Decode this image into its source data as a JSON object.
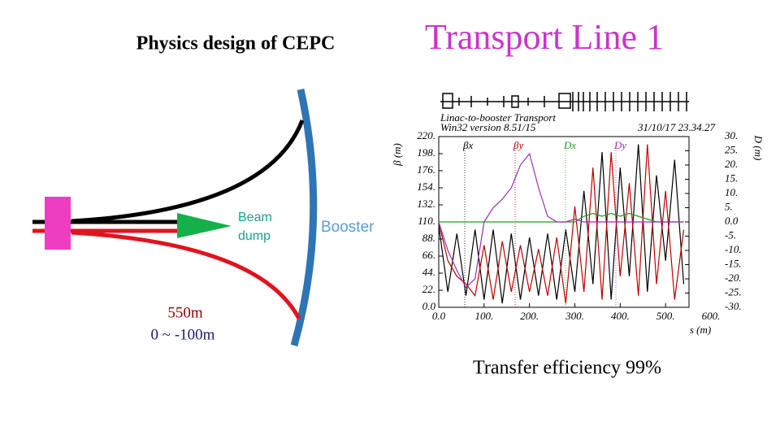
{
  "slide": {
    "title_left": "Physics design of CEPC",
    "title_right": "Transport Line 1",
    "caption": "Transfer efficiency 99%"
  },
  "diagram": {
    "beam_dump": [
      "Beam",
      "dump"
    ],
    "booster": "Booster",
    "length": "550m",
    "height": "0 ~ -100m"
  },
  "chart_data": {
    "type": "line",
    "title": "Linac-to-booster Transport",
    "subtitle": "Win32 version 8.51/15",
    "annotation": "31/10/17  23.34.27",
    "xlabel": "s (m)",
    "ylabel": "β (m)",
    "y2label": "D (m)",
    "x": [
      0,
      20,
      40,
      60,
      80,
      100,
      120,
      140,
      160,
      180,
      200,
      220,
      240,
      260,
      280,
      300,
      320,
      340,
      360,
      380,
      400,
      420,
      440,
      460,
      480,
      500,
      520,
      540
    ],
    "series": [
      {
        "name": "βx",
        "color": "#000000",
        "values": [
          105,
          20,
          95,
          15,
          100,
          10,
          100,
          5,
          95,
          10,
          90,
          15,
          95,
          10,
          100,
          20,
          150,
          30,
          200,
          10,
          180,
          40,
          210,
          20,
          170,
          60,
          190,
          30
        ]
      },
      {
        "name": "βy",
        "color": "#c00000",
        "values": [
          110,
          60,
          40,
          30,
          15,
          80,
          10,
          85,
          20,
          80,
          20,
          75,
          15,
          90,
          5,
          130,
          20,
          180,
          10,
          200,
          40,
          160,
          15,
          210,
          30,
          150,
          10,
          100
        ]
      },
      {
        "name": "Dx",
        "color": "#1fa01f",
        "axis": "y2",
        "values": [
          0,
          0,
          0,
          0,
          0,
          0,
          0,
          0,
          0,
          0,
          0,
          0,
          0,
          0,
          0,
          0,
          2,
          3,
          2,
          3,
          2,
          3,
          2,
          1,
          0,
          0,
          0,
          0
        ]
      },
      {
        "name": "Dy",
        "color": "#9b30b0",
        "axis": "y2",
        "values": [
          0,
          -10,
          -17,
          -23,
          -20,
          0,
          5,
          8,
          12,
          20,
          24,
          12,
          2,
          0,
          0,
          1,
          0,
          0,
          0,
          0,
          0,
          0,
          0,
          0,
          0,
          0,
          0,
          0
        ]
      }
    ],
    "xlim": [
      0,
      600
    ],
    "xticks": [
      {
        "value": 0,
        "label": "0.0"
      },
      {
        "value": 100,
        "label": "100."
      },
      {
        "value": 200,
        "label": "200."
      },
      {
        "value": 300,
        "label": "300."
      },
      {
        "value": 400,
        "label": "400."
      },
      {
        "value": 500,
        "label": "500."
      },
      {
        "value": 600,
        "label": "600."
      }
    ],
    "ylim": [
      0,
      220
    ],
    "yticks": [
      {
        "value": 220,
        "label": "220."
      },
      {
        "value": 198,
        "label": "198."
      },
      {
        "value": 176,
        "label": "176."
      },
      {
        "value": 154,
        "label": "154."
      },
      {
        "value": 132,
        "label": "132."
      },
      {
        "value": 110,
        "label": "110."
      },
      {
        "value": 88,
        "label": "88."
      },
      {
        "value": 66,
        "label": "66."
      },
      {
        "value": 44,
        "label": "44."
      },
      {
        "value": 22,
        "label": "22."
      },
      {
        "value": 0,
        "label": "0.0"
      }
    ],
    "y2lim": [
      -30,
      30
    ],
    "y2ticks": [
      {
        "value": 30,
        "label": "30."
      },
      {
        "value": 25,
        "label": "25."
      },
      {
        "value": 20,
        "label": "20."
      },
      {
        "value": 15,
        "label": "15."
      },
      {
        "value": 10,
        "label": "10."
      },
      {
        "value": 5,
        "label": "5."
      },
      {
        "value": 0,
        "label": "0.0"
      },
      {
        "value": -5,
        "label": "-5."
      },
      {
        "value": -10,
        "label": "-10."
      },
      {
        "value": -15,
        "label": "-15."
      },
      {
        "value": -20,
        "label": "-20."
      },
      {
        "value": -25,
        "label": "-25."
      },
      {
        "value": -30,
        "label": "-30."
      }
    ]
  }
}
